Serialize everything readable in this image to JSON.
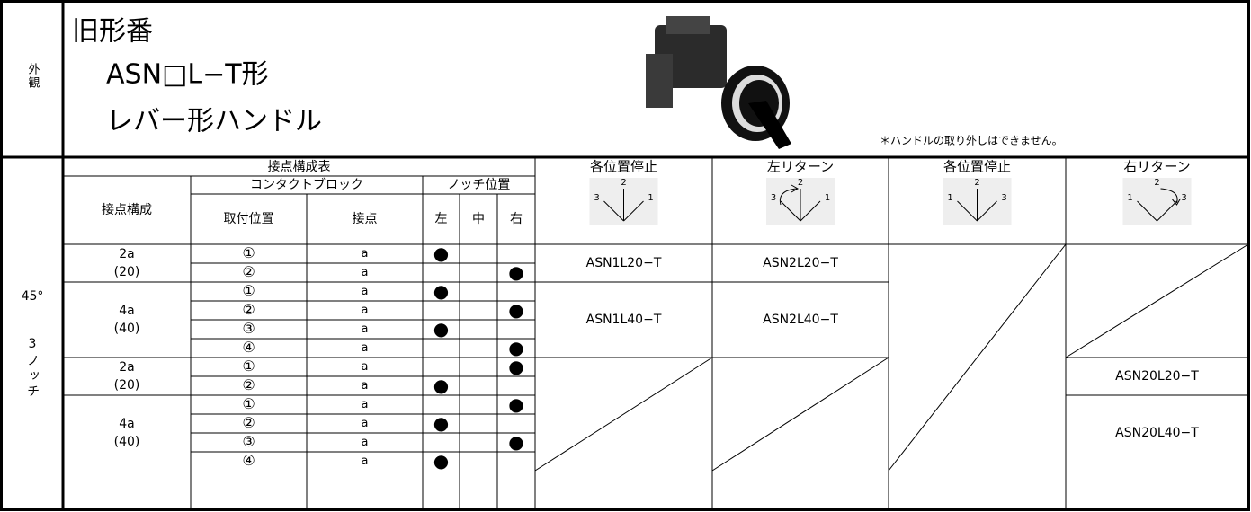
{
  "appearance_label": "外観",
  "header": {
    "title": "旧形番",
    "model": "ASN□L−T形",
    "handle": "レバー形ハンドル",
    "note": "＊ハンドルの取り外しはできません。"
  },
  "section_label": {
    "angle": "45°",
    "notches": "3ノッチ"
  },
  "table": {
    "title": "接点構成表",
    "col_headers": {
      "contact_config": "接点構成",
      "contact_block": "コンタクトブロック",
      "mount": "取付位置",
      "contact": "接点",
      "notch": "ノッチ位置",
      "notch_positions": [
        "左",
        "中",
        "右"
      ]
    },
    "types": [
      {
        "name": "各位置停止",
        "diagram": [
          "3",
          "2",
          "1"
        ]
      },
      {
        "name": "左リターン",
        "diagram": [
          "3",
          "2",
          "1"
        ]
      },
      {
        "name": "各位置停止",
        "diagram": [
          "1",
          "2",
          "3"
        ]
      },
      {
        "name": "右リターン",
        "diagram": [
          "1",
          "2",
          "3"
        ]
      }
    ],
    "groups": [
      {
        "config": "2a",
        "code": "(20)",
        "rows": [
          {
            "position": "①",
            "contact": "a",
            "notch": [
              "●",
              null,
              null
            ]
          },
          {
            "position": "②",
            "contact": "a",
            "notch": [
              null,
              null,
              "●"
            ]
          }
        ],
        "models": [
          "ASN1L20−T",
          "ASN2L20−T",
          null,
          null
        ]
      },
      {
        "config": "4a",
        "code": "(40)",
        "rows": [
          {
            "position": "①",
            "contact": "a",
            "notch": [
              "●",
              null,
              null
            ]
          },
          {
            "position": "②",
            "contact": "a",
            "notch": [
              null,
              null,
              "●"
            ]
          },
          {
            "position": "③",
            "contact": "a",
            "notch": [
              "●",
              null,
              null
            ]
          },
          {
            "position": "④",
            "contact": "a",
            "notch": [
              null,
              null,
              "●"
            ]
          }
        ],
        "models": [
          "ASN1L40−T",
          "ASN2L40−T",
          null,
          null
        ]
      },
      {
        "config": "2a",
        "code": "(20)",
        "rows": [
          {
            "position": "①",
            "contact": "a",
            "notch": [
              null,
              null,
              "●"
            ]
          },
          {
            "position": "②",
            "contact": "a",
            "notch": [
              "●",
              null,
              null
            ]
          }
        ],
        "models": [
          null,
          null,
          null,
          "ASN20L20−T"
        ]
      },
      {
        "config": "4a",
        "code": "(40)",
        "rows": [
          {
            "position": "①",
            "contact": "a",
            "notch": [
              null,
              null,
              "●"
            ]
          },
          {
            "position": "②",
            "contact": "a",
            "notch": [
              "●",
              null,
              null
            ]
          },
          {
            "position": "③",
            "contact": "a",
            "notch": [
              null,
              null,
              "●"
            ]
          },
          {
            "position": "④",
            "contact": "a",
            "notch": [
              "●",
              null,
              null
            ]
          }
        ],
        "models": [
          null,
          null,
          null,
          "ASN20L40−T"
        ]
      }
    ]
  }
}
